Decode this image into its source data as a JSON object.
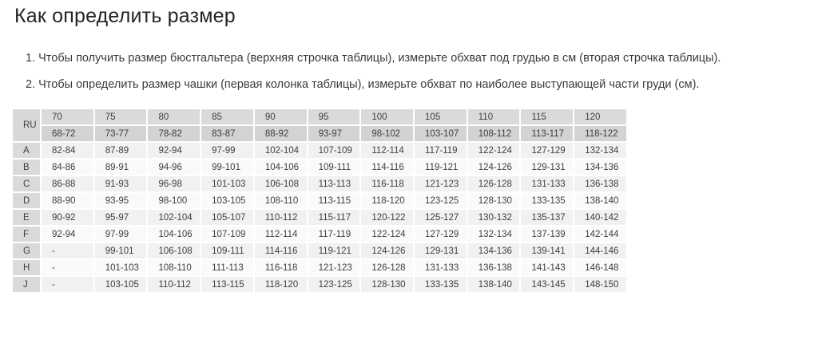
{
  "page": {
    "title": "Как определить размер",
    "instructions": [
      "1. Чтобы получить размер бюстгальтера (верхняя строчка таблицы), измерьте обхват под грудью в см (вторая строчка таблицы).",
      "2. Чтобы определить размер чашки (первая колонка таблицы), измерьте обхват по наиболее выступающей части груди (см)."
    ]
  },
  "table": {
    "corner_label": "RU",
    "band_sizes": [
      "70",
      "75",
      "80",
      "85",
      "90",
      "95",
      "100",
      "105",
      "110",
      "115",
      "120"
    ],
    "underbust_ranges": [
      "68-72",
      "73-77",
      "78-82",
      "83-87",
      "88-92",
      "93-97",
      "98-102",
      "103-107",
      "108-112",
      "113-117",
      "118-122"
    ],
    "cup_rows": [
      {
        "cup": "A",
        "values": [
          "82-84",
          "87-89",
          "92-94",
          "97-99",
          "102-104",
          "107-109",
          "112-114",
          "117-119",
          "122-124",
          "127-129",
          "132-134"
        ]
      },
      {
        "cup": "B",
        "values": [
          "84-86",
          "89-91",
          "94-96",
          "99-101",
          "104-106",
          "109-111",
          "114-116",
          "119-121",
          "124-126",
          "129-131",
          "134-136"
        ]
      },
      {
        "cup": "C",
        "values": [
          "86-88",
          "91-93",
          "96-98",
          "101-103",
          "106-108",
          "113-113",
          "116-118",
          "121-123",
          "126-128",
          "131-133",
          "136-138"
        ]
      },
      {
        "cup": "D",
        "values": [
          "88-90",
          "93-95",
          "98-100",
          "103-105",
          "108-110",
          "113-115",
          "118-120",
          "123-125",
          "128-130",
          "133-135",
          "138-140"
        ]
      },
      {
        "cup": "E",
        "values": [
          "90-92",
          "95-97",
          "102-104",
          "105-107",
          "110-112",
          "115-117",
          "120-122",
          "125-127",
          "130-132",
          "135-137",
          "140-142"
        ]
      },
      {
        "cup": "F",
        "values": [
          "92-94",
          "97-99",
          "104-106",
          "107-109",
          "112-114",
          "117-119",
          "122-124",
          "127-129",
          "132-134",
          "137-139",
          "142-144"
        ]
      },
      {
        "cup": "G",
        "values": [
          "-",
          "99-101",
          "106-108",
          "109-111",
          "114-116",
          "119-121",
          "124-126",
          "129-131",
          "134-136",
          "139-141",
          "144-146"
        ]
      },
      {
        "cup": "H",
        "values": [
          "-",
          "101-103",
          "108-110",
          "111-113",
          "116-118",
          "121-123",
          "126-128",
          "131-133",
          "136-138",
          "141-143",
          "146-148"
        ]
      },
      {
        "cup": "J",
        "values": [
          "-",
          "103-105",
          "110-112",
          "113-115",
          "118-120",
          "123-125",
          "128-130",
          "133-135",
          "138-140",
          "143-145",
          "148-150"
        ]
      }
    ]
  },
  "colors": {
    "header_bg": "#dadada",
    "subheader_bg": "#d3d3d3",
    "corner_bg": "#d8d8d8",
    "row_odd_bg": "#f1f1f1",
    "row_even_bg": "#fafafa",
    "text": "#3e3e3e"
  }
}
